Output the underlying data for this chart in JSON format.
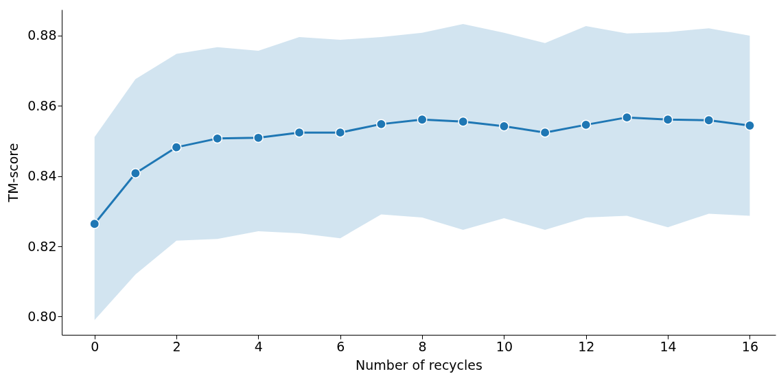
{
  "chart_data": {
    "type": "line",
    "xlabel": "Number of recycles",
    "ylabel": "TM-score",
    "x": [
      0,
      1,
      2,
      3,
      4,
      5,
      6,
      7,
      8,
      9,
      10,
      11,
      12,
      13,
      14,
      15,
      16
    ],
    "xlim": [
      -0.8,
      16.63
    ],
    "xticks": [
      0,
      2,
      4,
      6,
      8,
      10,
      12,
      14,
      16
    ],
    "ylim": [
      0.7948,
      0.8874
    ],
    "yticks": [
      {
        "value": 0.8,
        "label": "0.80"
      },
      {
        "value": 0.82,
        "label": "0.82"
      },
      {
        "value": 0.84,
        "label": "0.84"
      },
      {
        "value": 0.86,
        "label": "0.86"
      },
      {
        "value": 0.88,
        "label": "0.88"
      }
    ],
    "marker": "circle",
    "line_style": "solid",
    "series": [
      {
        "color": "#1f77b4",
        "values": [
          0.8264,
          0.8408,
          0.8482,
          0.8507,
          0.8509,
          0.8524,
          0.8524,
          0.8548,
          0.8561,
          0.8555,
          0.8542,
          0.8524,
          0.8546,
          0.8567,
          0.8561,
          0.8559,
          0.8544
        ],
        "lower": [
          0.799,
          0.812,
          0.8216,
          0.8221,
          0.8243,
          0.8237,
          0.8223,
          0.8291,
          0.8282,
          0.8247,
          0.828,
          0.8247,
          0.8282,
          0.8287,
          0.8254,
          0.8293,
          0.8287
        ],
        "upper": [
          0.8511,
          0.8676,
          0.8748,
          0.8767,
          0.8757,
          0.8796,
          0.8788,
          0.8796,
          0.8808,
          0.8833,
          0.8808,
          0.8779,
          0.8827,
          0.8806,
          0.881,
          0.8821,
          0.88
        ]
      }
    ]
  }
}
